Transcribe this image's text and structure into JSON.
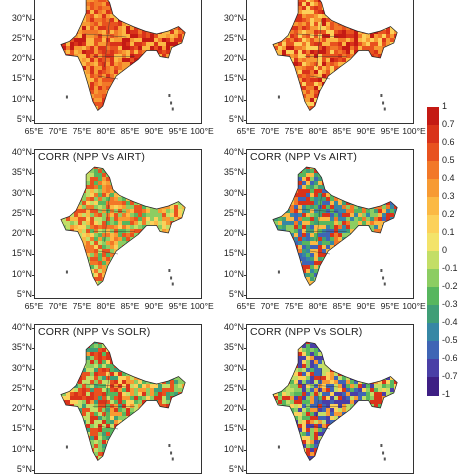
{
  "panels": [
    {
      "title": ""
    },
    {
      "title": ""
    },
    {
      "title": "CORR (NPP Vs AIRT)"
    },
    {
      "title": "CORR (NPP Vs AIRT)"
    },
    {
      "title": "CORR (NPP Vs SOLR)"
    },
    {
      "title": "CORR (NPP Vs SOLR)"
    }
  ],
  "lat_labels": [
    "40°N",
    "35°N",
    "30°N",
    "25°N",
    "20°N",
    "15°N",
    "10°N",
    "5°N"
  ],
  "lon_labels": [
    "65°E",
    "70°E",
    "75°E",
    "80°E",
    "85°E",
    "90°E",
    "95°E",
    "100°E"
  ],
  "colorbar": {
    "labels": [
      "1",
      "0.7",
      "0.6",
      "0.5",
      "0.4",
      "0.3",
      "0.2",
      "0.1",
      "0",
      "-0.1",
      "-0.2",
      "-0.3",
      "-0.4",
      "-0.5",
      "-0.6",
      "-0.7",
      "-1"
    ],
    "colors": [
      "#c41a14",
      "#d9331a",
      "#e8521f",
      "#f27828",
      "#f79a33",
      "#fbb944",
      "#fcd15a",
      "#f3e36a",
      "#c3de66",
      "#8ccd62",
      "#57b65e",
      "#3f9e77",
      "#3687a5",
      "#3f65b5",
      "#4a3fa6",
      "#3e1f84"
    ]
  },
  "palette": {
    "wide_orange": [
      "#e8521f",
      "#f27828",
      "#f79a33",
      "#d9331a",
      "#fbb944",
      "#c41a14"
    ],
    "warm_mixed": [
      "#f27828",
      "#d9331a",
      "#f79a33",
      "#fcd15a",
      "#e8521f",
      "#c41a14",
      "#fbb944"
    ],
    "airt_left": [
      "#f79a33",
      "#fbb944",
      "#fcd15a",
      "#c3de66",
      "#e8521f",
      "#8ccd62",
      "#f27828",
      "#57b65e"
    ],
    "airt_right": [
      "#57b65e",
      "#3f9e77",
      "#8ccd62",
      "#f27828",
      "#3687a5",
      "#fbb944",
      "#d9331a",
      "#3f65b5"
    ],
    "solr_left": [
      "#c3de66",
      "#8ccd62",
      "#f79a33",
      "#fcd15a",
      "#57b65e",
      "#d9331a",
      "#3f9e77",
      "#e8521f"
    ],
    "solr_right": [
      "#fcd15a",
      "#c3de66",
      "#f79a33",
      "#3f65b5",
      "#4a3fa6",
      "#d9331a",
      "#57b65e",
      "#8ccd62"
    ]
  }
}
